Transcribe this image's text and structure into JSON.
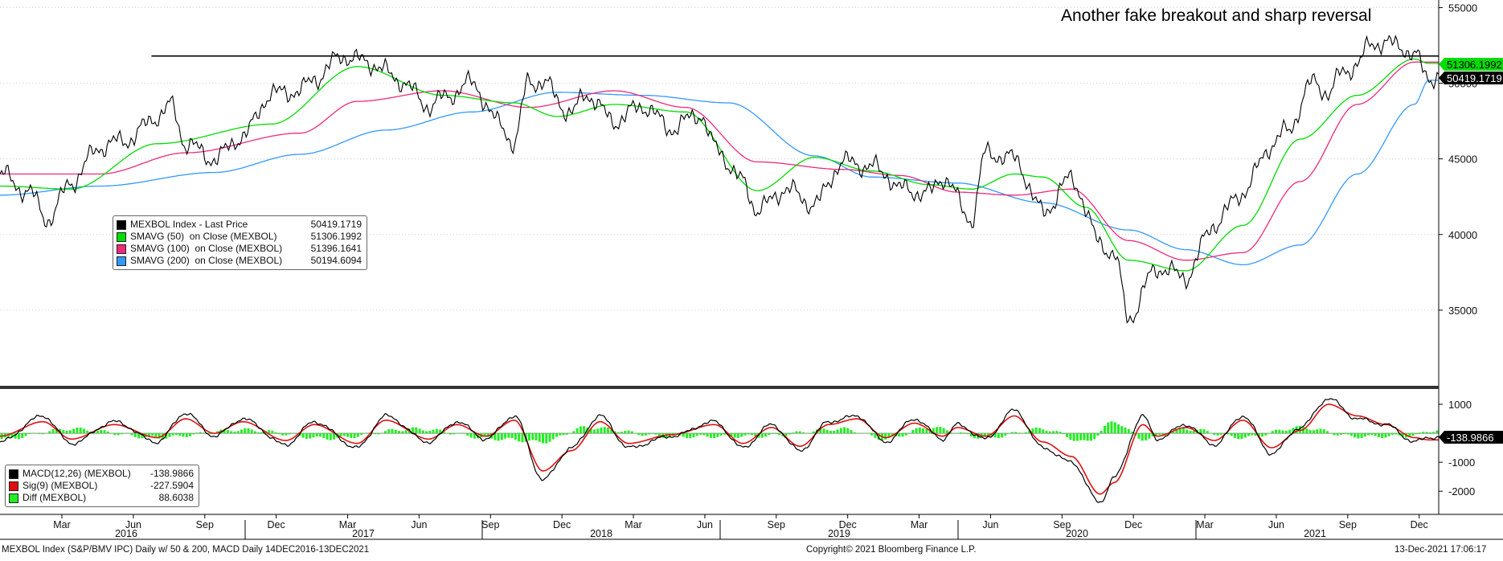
{
  "annotation": "Another fake breakout and sharp reversal",
  "footer": {
    "left": "MEXBOL Index (S&P/BMV IPC) Daily w/ 50 & 200, MACD  Daily 14DEC2016-13DEC2021",
    "center": "Copyright© 2021 Bloomberg Finance L.P.",
    "right": "13-Dec-2021 17:06:17"
  },
  "colors": {
    "price": "#000000",
    "sma50": "#00dd00",
    "sma100": "#ee2a7b",
    "sma200": "#3399ff",
    "macd": "#000000",
    "signal": "#e01010",
    "diff": "#22ee22"
  },
  "price_legend": [
    {
      "name": "MEXBOL Index - Last Price",
      "value": "50419.1719",
      "color": "#000000"
    },
    {
      "name": "SMAVG (50)  on Close (MEXBOL)",
      "value": "51306.1992",
      "color": "#00dd00"
    },
    {
      "name": "SMAVG (100)  on Close (MEXBOL)",
      "value": "51396.1641",
      "color": "#ee2a7b"
    },
    {
      "name": "SMAVG (200)  on Close (MEXBOL)",
      "value": "50194.6094",
      "color": "#3399ff"
    }
  ],
  "macd_legend": [
    {
      "name": "MACD(12,26) (MEXBOL)",
      "value": "-138.9866",
      "color": "#000000"
    },
    {
      "name": "Sig(9) (MEXBOL)",
      "value": "-227.5904",
      "color": "#e01010"
    },
    {
      "name": "Diff (MEXBOL)",
      "value": "88.6038",
      "color": "#22ee22"
    }
  ],
  "axis_tags": {
    "sma50": "51306.1992",
    "last": "50419.1719",
    "macd": "-138.9866"
  },
  "chart_data": [
    {
      "type": "line",
      "title": "",
      "x_ticks_months": [
        "Mar",
        "Jun",
        "Sep",
        "Dec",
        "Mar",
        "Jun",
        "Sep",
        "Dec",
        "Mar",
        "Jun",
        "Sep",
        "Dec",
        "Mar",
        "Jun",
        "Sep",
        "Dec",
        "Mar",
        "Jun",
        "Sep",
        "Dec",
        "Mar",
        "Jun",
        "Sep",
        "Dec"
      ],
      "x_ticks_years": [
        "2016",
        "2017",
        "2018",
        "2019",
        "2020",
        "2021"
      ],
      "y_ticks": [
        35000,
        40000,
        45000,
        50000,
        55000
      ],
      "ylim": [
        30000,
        55500
      ],
      "resistance_level": 51800,
      "series": [
        {
          "name": "MEXBOL Index - Last Price",
          "x": [
            2016.95,
            2017.05,
            2017.12,
            2017.2,
            2017.3,
            2017.4,
            2017.5,
            2017.55,
            2017.6,
            2017.7,
            2017.8,
            2017.9,
            2018.0,
            2018.05,
            2018.15,
            2018.25,
            2018.35,
            2018.45,
            2018.5,
            2018.6,
            2018.7,
            2018.75,
            2018.8,
            2018.85,
            2018.95,
            2019.0,
            2019.1,
            2019.2,
            2019.3,
            2019.4,
            2019.45,
            2019.55,
            2019.6,
            2019.7,
            2019.8,
            2019.9,
            2020.0,
            2020.05,
            2020.1,
            2020.2,
            2020.25,
            2020.35,
            2020.4,
            2020.5,
            2020.6,
            2020.7,
            2020.8,
            2020.85,
            2020.9,
            2021.0,
            2021.1,
            2021.2,
            2021.3,
            2021.4,
            2021.45,
            2021.55,
            2021.6,
            2021.65,
            2021.7,
            2021.75,
            2021.85,
            2021.9,
            2021.95
          ],
          "values": [
            44000,
            42800,
            41000,
            43500,
            45800,
            46300,
            47800,
            48500,
            46000,
            45000,
            46500,
            49300,
            49500,
            50300,
            51800,
            51300,
            50200,
            48500,
            49000,
            50000,
            47300,
            46000,
            50200,
            50000,
            48000,
            49300,
            47500,
            48500,
            47000,
            48000,
            45800,
            43500,
            41600,
            43000,
            42000,
            44800,
            44500,
            44000,
            43000,
            42700,
            43800,
            41000,
            45400,
            45000,
            41500,
            43700,
            39500,
            38600,
            34500,
            37800,
            37200,
            40700,
            42800,
            45900,
            46800,
            50100,
            49300,
            50800,
            51200,
            52700,
            52500,
            51800,
            50419
          ]
        },
        {
          "name": "SMAVG (50)",
          "x": [
            2016.95,
            2017.2,
            2017.5,
            2017.9,
            2018.2,
            2018.5,
            2018.75,
            2018.9,
            2019.1,
            2019.35,
            2019.6,
            2019.8,
            2020.0,
            2020.2,
            2020.35,
            2020.5,
            2020.6,
            2020.75,
            2020.9,
            2021.1,
            2021.3,
            2021.5,
            2021.7,
            2021.9,
            2021.95
          ],
          "values": [
            43200,
            43000,
            46000,
            47300,
            51100,
            49200,
            48700,
            47800,
            48600,
            48100,
            42900,
            45100,
            44200,
            43300,
            43000,
            44000,
            43800,
            41800,
            38300,
            37600,
            40600,
            46300,
            49200,
            51600,
            51306
          ]
        },
        {
          "name": "SMAVG (100)",
          "x": [
            2016.95,
            2017.3,
            2017.6,
            2018.0,
            2018.2,
            2018.5,
            2018.8,
            2019.1,
            2019.35,
            2019.6,
            2019.9,
            2020.1,
            2020.3,
            2020.5,
            2020.7,
            2020.9,
            2021.1,
            2021.3,
            2021.5,
            2021.7,
            2021.9,
            2021.95
          ],
          "values": [
            44000,
            44000,
            45400,
            46700,
            48800,
            49500,
            48400,
            49500,
            48400,
            44800,
            44300,
            43900,
            42800,
            42600,
            43000,
            39600,
            38300,
            38800,
            43500,
            48600,
            51400,
            51396
          ]
        },
        {
          "name": "SMAVG (200)",
          "x": [
            2016.95,
            2017.3,
            2017.7,
            2018.0,
            2018.3,
            2018.6,
            2018.9,
            2019.2,
            2019.5,
            2019.8,
            2020.0,
            2020.3,
            2020.6,
            2020.9,
            2021.1,
            2021.3,
            2021.5,
            2021.7,
            2021.9,
            2021.95
          ],
          "values": [
            42600,
            43200,
            44100,
            45300,
            46900,
            48100,
            49400,
            49200,
            48700,
            45200,
            43800,
            43400,
            42100,
            40300,
            39000,
            38000,
            39300,
            44000,
            48600,
            50194
          ]
        }
      ]
    },
    {
      "type": "line",
      "title": "",
      "y_ticks": [
        1000,
        -1000,
        -2000
      ],
      "ylim": [
        -2800,
        1500
      ],
      "series": [
        {
          "name": "MACD(12,26) (MEXBOL)",
          "x": [
            2016.95,
            2017.1,
            2017.2,
            2017.35,
            2017.5,
            2017.6,
            2017.7,
            2017.8,
            2017.95,
            2018.05,
            2018.2,
            2018.3,
            2018.45,
            2018.55,
            2018.65,
            2018.75,
            2018.85,
            2018.95,
            2019.05,
            2019.15,
            2019.3,
            2019.45,
            2019.55,
            2019.65,
            2019.75,
            2019.85,
            2019.95,
            2020.05,
            2020.15,
            2020.25,
            2020.3,
            2020.4,
            2020.5,
            2020.6,
            2020.7,
            2020.8,
            2020.85,
            2020.95,
            2021.0,
            2021.1,
            2021.2,
            2021.3,
            2021.4,
            2021.5,
            2021.6,
            2021.7,
            2021.8,
            2021.9,
            2021.95
          ],
          "values": [
            -300,
            600,
            -350,
            400,
            -300,
            700,
            -100,
            500,
            -400,
            400,
            -500,
            600,
            -300,
            400,
            -200,
            600,
            -1600,
            -500,
            600,
            -500,
            -100,
            400,
            -500,
            300,
            -600,
            400,
            600,
            -300,
            500,
            -200,
            300,
            -200,
            800,
            -500,
            -1000,
            -2400,
            -1500,
            600,
            -200,
            300,
            -400,
            600,
            -700,
            200,
            1200,
            500,
            300,
            -300,
            -139
          ]
        },
        {
          "name": "Sig(9) (MEXBOL)",
          "x": [
            2016.95,
            2017.1,
            2017.2,
            2017.35,
            2017.5,
            2017.6,
            2017.7,
            2017.8,
            2017.95,
            2018.05,
            2018.2,
            2018.3,
            2018.45,
            2018.55,
            2018.65,
            2018.75,
            2018.85,
            2018.95,
            2019.05,
            2019.15,
            2019.3,
            2019.45,
            2019.55,
            2019.65,
            2019.75,
            2019.85,
            2019.95,
            2020.05,
            2020.15,
            2020.25,
            2020.3,
            2020.4,
            2020.5,
            2020.6,
            2020.7,
            2020.8,
            2020.85,
            2020.95,
            2021.0,
            2021.1,
            2021.2,
            2021.3,
            2021.4,
            2021.5,
            2021.6,
            2021.7,
            2021.8,
            2021.9,
            2021.95
          ],
          "values": [
            -100,
            400,
            -200,
            300,
            -150,
            500,
            0,
            400,
            -250,
            300,
            -350,
            450,
            -200,
            300,
            -100,
            450,
            -1300,
            -600,
            400,
            -350,
            -50,
            300,
            -350,
            200,
            -450,
            300,
            500,
            -150,
            350,
            -100,
            200,
            -100,
            600,
            -300,
            -800,
            -2100,
            -1700,
            300,
            -100,
            200,
            -250,
            450,
            -500,
            100,
            1000,
            600,
            300,
            -150,
            -228
          ]
        },
        {
          "name": "Diff (MEXBOL)",
          "x": [
            2016.95,
            2017.2,
            2017.5,
            2017.8,
            2018.1,
            2018.4,
            2018.7,
            2018.85,
            2019.0,
            2019.3,
            2019.6,
            2019.9,
            2020.05,
            2020.2,
            2020.4,
            2020.6,
            2020.75,
            2020.85,
            2020.95,
            2021.1,
            2021.3,
            2021.5,
            2021.7,
            2021.9,
            2021.95
          ],
          "values": [
            -200,
            150,
            -150,
            120,
            -180,
            150,
            -200,
            -300,
            200,
            -120,
            -100,
            150,
            -200,
            200,
            -150,
            150,
            -300,
            400,
            -200,
            150,
            -150,
            200,
            -120,
            -90,
            89
          ]
        }
      ]
    }
  ]
}
